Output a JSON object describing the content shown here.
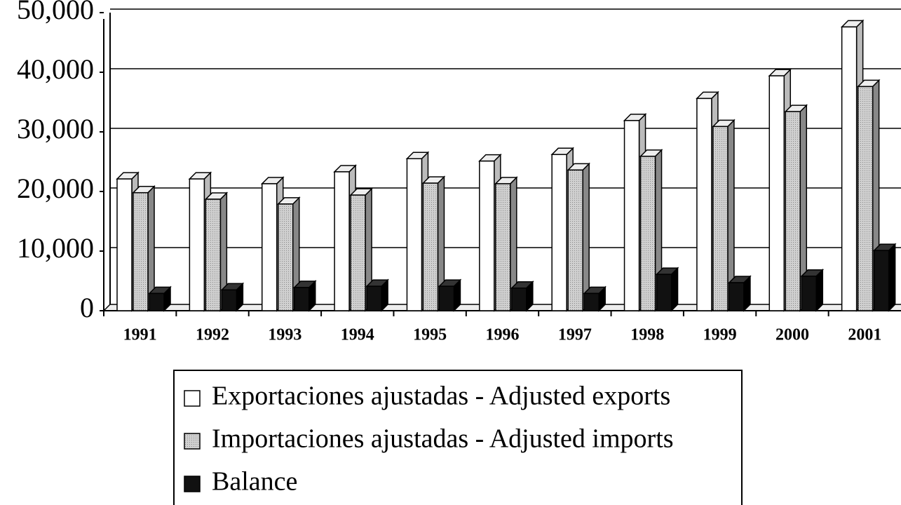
{
  "chart_data": {
    "type": "bar3d",
    "categories": [
      "1991",
      "1992",
      "1993",
      "1994",
      "1995",
      "1996",
      "1997",
      "1998",
      "1999",
      "2000",
      "2001"
    ],
    "series": [
      {
        "name": "Exportaciones ajustadas - Adjusted exports",
        "color": "#ffffff",
        "values": [
          22100,
          22100,
          21300,
          23300,
          25500,
          25100,
          26200,
          31900,
          35600,
          39400,
          47600
        ]
      },
      {
        "name": "Importaciones ajustadas - Adjusted imports",
        "color": "#c4c4c4",
        "values": [
          19800,
          18700,
          17900,
          19400,
          21400,
          21300,
          23600,
          25900,
          30900,
          33400,
          37600
        ]
      },
      {
        "name": "Balance",
        "color": "#111111",
        "values": [
          2900,
          3500,
          3900,
          4100,
          4100,
          3800,
          2900,
          6100,
          4700,
          5800,
          10100
        ]
      }
    ],
    "ylim": [
      0,
      50000
    ],
    "yticks": [
      0,
      {
        "value": 10000,
        "label": "10,000"
      },
      {
        "value": 20000,
        "label": "20,000"
      },
      {
        "value": 30000,
        "label": "30,000"
      },
      {
        "value": 40000,
        "label": "40,000"
      },
      {
        "value": 50000,
        "label": "50,000"
      }
    ],
    "grid": true,
    "legend": "bottom"
  }
}
